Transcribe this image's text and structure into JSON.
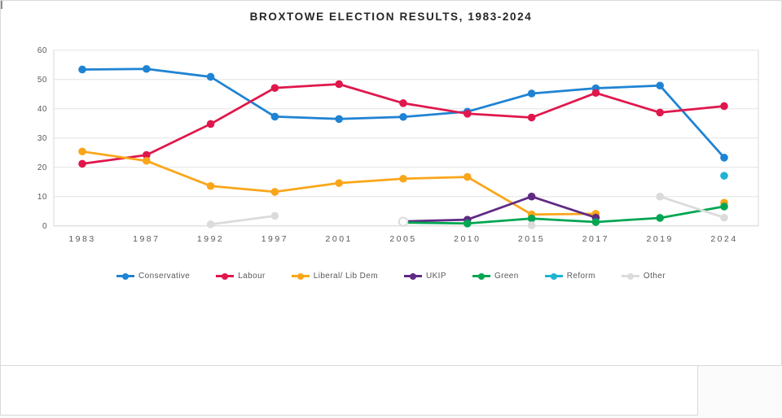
{
  "title": "BROXTOWE ELECTION RESULTS, 1983-2024",
  "chart_data": {
    "type": "line",
    "title": "BROXTOWE ELECTION RESULTS, 1983-2024",
    "categories": [
      "1983",
      "1987",
      "1992",
      "1997",
      "2001",
      "2005",
      "2010",
      "2015",
      "2017",
      "2019",
      "2024"
    ],
    "ylim": [
      0,
      60
    ],
    "yticks": [
      0,
      10,
      20,
      30,
      40,
      50,
      60
    ],
    "grid": true,
    "legend_position": "bottom",
    "series": [
      {
        "name": "Conservative",
        "color": "#1F83D3",
        "values": [
          53.4,
          53.6,
          50.9,
          37.3,
          36.5,
          37.2,
          39.0,
          45.2,
          47.0,
          47.9,
          23.3
        ]
      },
      {
        "name": "Labour",
        "color": "#E0174C",
        "values": [
          21.2,
          24.2,
          34.8,
          47.1,
          48.4,
          41.9,
          38.3,
          37.0,
          45.4,
          38.7,
          40.9
        ]
      },
      {
        "name": "Liberal/ Lib Dem",
        "color": "#FAA61A",
        "values": [
          25.4,
          22.2,
          13.6,
          11.6,
          14.6,
          16.1,
          16.7,
          3.9,
          4.1,
          null,
          7.9
        ]
      },
      {
        "name": "UKIP",
        "color": "#5F2A84",
        "values": [
          null,
          null,
          null,
          null,
          null,
          1.5,
          2.1,
          10.0,
          2.8,
          null,
          null
        ]
      },
      {
        "name": "Green",
        "color": "#00A651",
        "values": [
          null,
          null,
          null,
          null,
          null,
          1.1,
          0.8,
          2.5,
          1.3,
          2.7,
          6.6
        ]
      },
      {
        "name": "Reform",
        "color": "#1FB4D2",
        "values": [
          null,
          null,
          null,
          null,
          null,
          null,
          null,
          null,
          null,
          null,
          17.1
        ]
      },
      {
        "name": "Other",
        "color": "#DBDBDB",
        "values": [
          null,
          null,
          0.5,
          3.4,
          null,
          1.4,
          null,
          0.2,
          null,
          10.0,
          2.8
        ]
      }
    ],
    "ring_markers": [
      {
        "series": "Other",
        "category": "2005"
      }
    ],
    "colors": {
      "gridline": "#E3E3E3",
      "plot_border": "#D9D9D9",
      "axis_text": "#595959",
      "title_text": "#262626"
    }
  }
}
